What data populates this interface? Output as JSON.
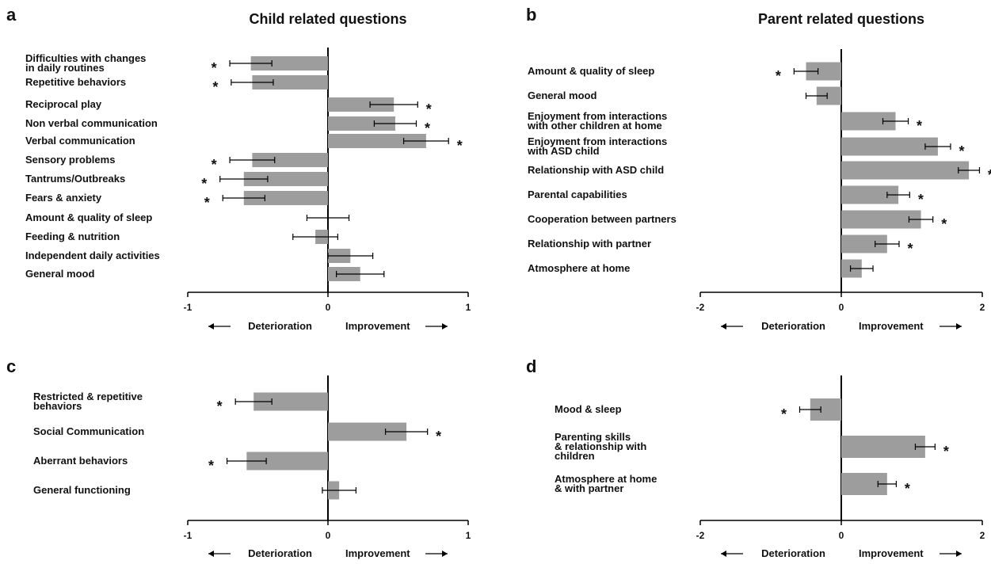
{
  "figure": {
    "direction_labels": {
      "left": "Deterioration",
      "right": "Improvement"
    }
  },
  "chart_data": [
    {
      "panel": "a",
      "type": "bar",
      "orientation": "horizontal",
      "title": "Child related questions",
      "categories": [
        [
          "Difficulties with changes",
          "in daily routines"
        ],
        [
          "Repetitive behaviors"
        ],
        [
          "Reciprocal play"
        ],
        [
          "Non verbal communication"
        ],
        [
          "Verbal communication"
        ],
        [
          "Sensory problems"
        ],
        [
          "Tantrums/Outbreaks"
        ],
        [
          "Fears & anxiety"
        ],
        [
          "Amount & quality of sleep"
        ],
        [
          "Feeding & nutrition"
        ],
        [
          "Independent daily activities"
        ],
        [
          "General mood"
        ]
      ],
      "values": [
        -0.55,
        -0.54,
        0.47,
        0.48,
        0.7,
        -0.54,
        -0.6,
        -0.6,
        0.0,
        -0.09,
        0.16,
        0.23
      ],
      "errors": [
        0.15,
        0.15,
        0.17,
        0.15,
        0.16,
        0.16,
        0.17,
        0.15,
        0.15,
        0.16,
        0.16,
        0.17
      ],
      "significant": [
        true,
        true,
        true,
        true,
        true,
        true,
        true,
        true,
        false,
        false,
        false,
        false
      ],
      "xlim": [
        -1,
        1
      ],
      "xticks": [
        "-1",
        "0",
        "1"
      ]
    },
    {
      "panel": "b",
      "type": "bar",
      "orientation": "horizontal",
      "title": "Parent related questions",
      "categories": [
        [
          "Amount & quality of sleep"
        ],
        [
          "General mood"
        ],
        [
          "Enjoyment from interactions",
          "with other children at home"
        ],
        [
          "Enjoyment from interactions",
          "with ASD child"
        ],
        [
          "Relationship with ASD child"
        ],
        [
          "Parental capabilities"
        ],
        [
          "Cooperation between partners"
        ],
        [
          "Relationship with partner"
        ],
        [
          "Atmosphere at home"
        ]
      ],
      "values": [
        -0.5,
        -0.35,
        0.77,
        1.37,
        1.81,
        0.81,
        1.13,
        0.65,
        0.29
      ],
      "errors": [
        0.17,
        0.15,
        0.18,
        0.18,
        0.15,
        0.16,
        0.17,
        0.17,
        0.16
      ],
      "significant": [
        true,
        false,
        true,
        true,
        true,
        true,
        true,
        true,
        false
      ],
      "xlim": [
        -2,
        2
      ],
      "xticks": [
        "-2",
        "0",
        "2"
      ]
    },
    {
      "panel": "c",
      "type": "bar",
      "orientation": "horizontal",
      "title": "",
      "categories": [
        [
          "Restricted & repetitive",
          "behaviors"
        ],
        [
          "Social Communication"
        ],
        [
          "Aberrant behaviors"
        ],
        [
          "General functioning"
        ]
      ],
      "values": [
        -0.53,
        0.56,
        -0.58,
        0.08
      ],
      "errors": [
        0.13,
        0.15,
        0.14,
        0.12
      ],
      "significant": [
        true,
        true,
        true,
        false
      ],
      "xlim": [
        -1,
        1
      ],
      "xticks": [
        "-1",
        "0",
        "1"
      ]
    },
    {
      "panel": "d",
      "type": "bar",
      "orientation": "horizontal",
      "title": "",
      "categories": [
        [
          "Mood & sleep"
        ],
        [
          "Parenting skills",
          "& relationship with",
          "children"
        ],
        [
          "Atmosphere at home",
          "& with partner"
        ]
      ],
      "values": [
        -0.44,
        1.19,
        0.65
      ],
      "errors": [
        0.15,
        0.14,
        0.13
      ],
      "significant": [
        true,
        true,
        true
      ],
      "xlim": [
        -2,
        2
      ],
      "xticks": [
        "-2",
        "0",
        "2"
      ]
    }
  ]
}
